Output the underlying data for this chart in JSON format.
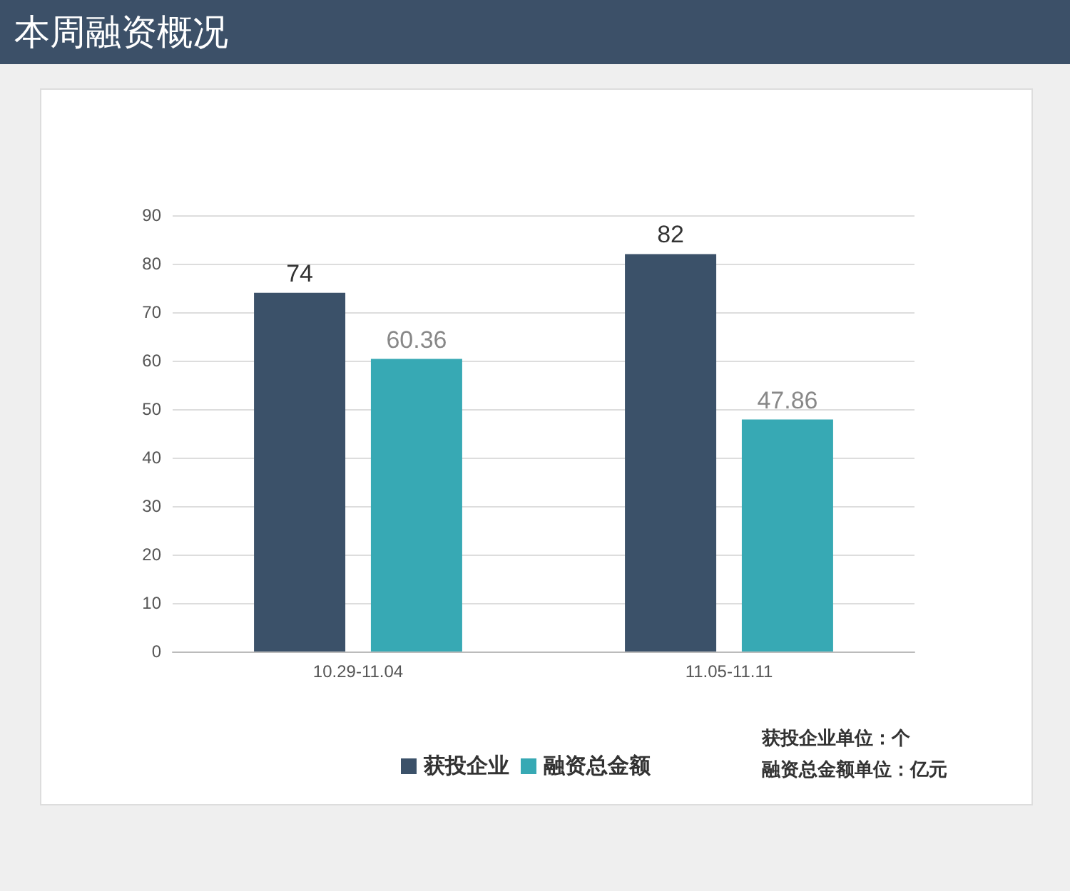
{
  "chart_data": {
    "type": "bar",
    "title": "本周融资概况",
    "categories": [
      "10.29-11.04",
      "11.05-11.11"
    ],
    "series": [
      {
        "name": "获投企业",
        "color": "#3b5169",
        "values": [
          74,
          82
        ]
      },
      {
        "name": "融资总金额",
        "color": "#37a9b4",
        "values": [
          60.36,
          47.86
        ]
      }
    ],
    "ylim": [
      0,
      90
    ],
    "yticks": [
      0,
      10,
      20,
      30,
      40,
      50,
      60,
      70,
      80,
      90
    ],
    "grid": "y",
    "legend": "bottom",
    "data_labels": true,
    "annotations": [
      "获投企业单位：个",
      "融资总金额单位：亿元"
    ]
  }
}
